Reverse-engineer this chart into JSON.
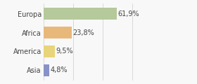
{
  "categories": [
    "Europa",
    "Africa",
    "America",
    "Asia"
  ],
  "values": [
    61.9,
    23.8,
    9.5,
    4.8
  ],
  "labels": [
    "61,9%",
    "23,8%",
    "9,5%",
    "4,8%"
  ],
  "bar_colors": [
    "#b5c99a",
    "#e8b87a",
    "#e8d47a",
    "#8892c8"
  ],
  "background_color": "#f8f8f8",
  "xlim": [
    0,
    100
  ],
  "label_fontsize": 7,
  "category_fontsize": 7,
  "bar_height": 0.65
}
